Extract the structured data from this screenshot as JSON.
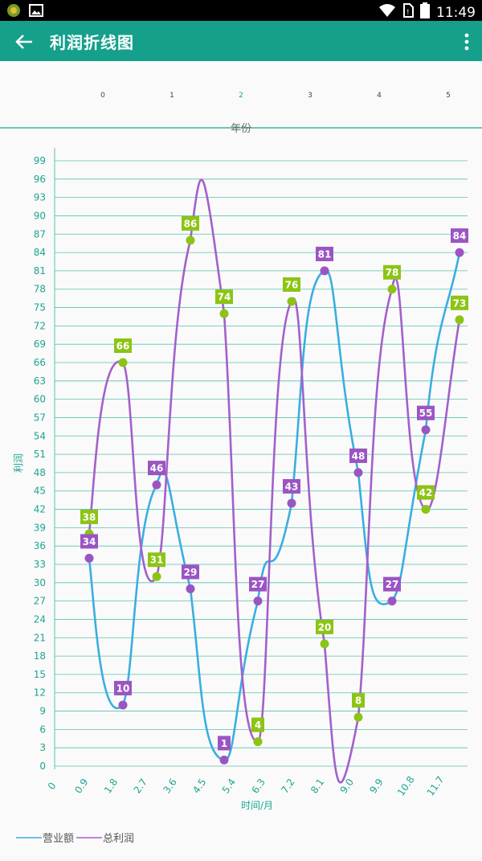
{
  "status_bar": {
    "time": "11:49",
    "icons": [
      "app-notification-icon",
      "image-icon",
      "wifi-icon",
      "no-sim-icon",
      "battery-icon"
    ]
  },
  "app_bar": {
    "title": "利润折线图",
    "back_icon": "arrow-back-icon",
    "menu_icon": "more-vert-icon"
  },
  "colors": {
    "app_bar": "#15a08c",
    "revenue_line": "#3aaee0",
    "profit_line": "#a45fcb",
    "green_marker": "#8cc414",
    "purple_marker": "#9b55c2",
    "grid": "#58c2b1",
    "axis_text": "#1ea591"
  },
  "chart_data": {
    "type": "line",
    "top_axis": {
      "title": "年份",
      "ticks": [
        "0",
        "1",
        "2",
        "3",
        "4",
        "5"
      ],
      "highlighted_tick": "2"
    },
    "xlabel": "时间/月",
    "ylabel": "利润",
    "y_ticks": [
      "0",
      "3",
      "6",
      "9",
      "12",
      "15",
      "18",
      "21",
      "24",
      "27",
      "30",
      "33",
      "36",
      "39",
      "42",
      "45",
      "48",
      "51",
      "54",
      "57",
      "60",
      "63",
      "66",
      "69",
      "72",
      "75",
      "78",
      "81",
      "84",
      "87",
      "90",
      "93",
      "96",
      "99"
    ],
    "ylim": [
      0,
      99
    ],
    "x_ticks": [
      "0",
      "0.9",
      "1.8",
      "2.7",
      "3.6",
      "4.5",
      "5.4",
      "6.3",
      "7.2",
      "8.1",
      "9.0",
      "9.9",
      "10.8",
      "11.7"
    ],
    "xlim": [
      0,
      12.6
    ],
    "series": [
      {
        "name": "营业额",
        "color": "#3aaee0",
        "marker": "purple",
        "points": [
          {
            "x": 1.0,
            "y": 34,
            "label": "34"
          },
          {
            "x": 2.0,
            "y": 10,
            "label": "10"
          },
          {
            "x": 3.0,
            "y": 46,
            "label": "46"
          },
          {
            "x": 4.0,
            "y": 29,
            "label": "29"
          },
          {
            "x": 5.0,
            "y": 1,
            "label": "1"
          },
          {
            "x": 6.0,
            "y": 27,
            "label": "27"
          },
          {
            "x": 7.0,
            "y": 43,
            "label": "43"
          },
          {
            "x": 8.0,
            "y": 81,
            "label": "81"
          },
          {
            "x": 9.0,
            "y": 48,
            "label": "48"
          },
          {
            "x": 10.0,
            "y": 27,
            "label": "27"
          },
          {
            "x": 11.0,
            "y": 55,
            "label": "55"
          },
          {
            "x": 12.0,
            "y": 84,
            "label": "84"
          }
        ]
      },
      {
        "name": "总利润",
        "color": "#a45fcb",
        "marker": "green",
        "points": [
          {
            "x": 1.0,
            "y": 38,
            "label": "38"
          },
          {
            "x": 2.0,
            "y": 66,
            "label": "66"
          },
          {
            "x": 3.0,
            "y": 31,
            "label": "31"
          },
          {
            "x": 4.0,
            "y": 86,
            "label": "86"
          },
          {
            "x": 5.0,
            "y": 74,
            "label": "74"
          },
          {
            "x": 6.0,
            "y": 4,
            "label": "4"
          },
          {
            "x": 7.0,
            "y": 76,
            "label": "76"
          },
          {
            "x": 8.0,
            "y": 20,
            "label": "20"
          },
          {
            "x": 9.0,
            "y": 8,
            "label": "8"
          },
          {
            "x": 10.0,
            "y": 78,
            "label": "78"
          },
          {
            "x": 11.0,
            "y": 42,
            "label": "42"
          },
          {
            "x": 12.0,
            "y": 73,
            "label": "73"
          }
        ]
      }
    ],
    "legend": [
      "营业额",
      "总利润"
    ],
    "legend_position": "bottom-left"
  }
}
